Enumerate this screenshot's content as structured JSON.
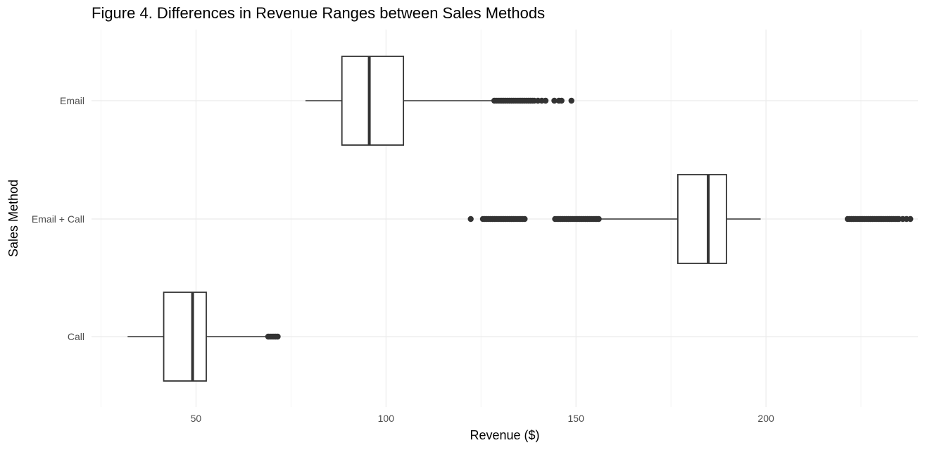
{
  "chart_data": {
    "type": "boxplot",
    "title": "Figure 4. Differences in Revenue Ranges between Sales Methods",
    "xlabel": "Revenue ($)",
    "ylabel": "Sales Method",
    "xlim": [
      22.5,
      240
    ],
    "x_ticks": [
      50,
      100,
      150,
      200
    ],
    "x_minor_ticks": [
      25,
      75,
      125,
      175,
      225
    ],
    "grid": true,
    "orientation": "horizontal",
    "categories": [
      "Email",
      "Email + Call",
      "Call"
    ],
    "series": [
      {
        "category": "Email",
        "whisker_low": 78.8,
        "q1": 88.4,
        "median": 95.6,
        "q3": 104.6,
        "whisker_high": 128.3,
        "outliers": [
          128.5,
          129,
          129.5,
          130,
          130.5,
          131,
          131.5,
          132,
          132.5,
          133,
          133.5,
          134,
          134.5,
          135,
          135.5,
          136,
          136.5,
          137,
          137.5,
          138,
          138.5,
          139,
          140,
          141,
          142,
          144.3,
          145.5,
          146.2,
          148.8
        ]
      },
      {
        "category": "Email + Call",
        "whisker_low": 156.5,
        "q1": 176.8,
        "median": 184.8,
        "q3": 189.6,
        "whisker_high": 198.6,
        "outliers": [
          122.3,
          125.5,
          126,
          126.5,
          127,
          127.5,
          128,
          128.5,
          129,
          129.5,
          130,
          130.5,
          131,
          131.5,
          132,
          132.5,
          133,
          133.5,
          134,
          134.5,
          135,
          135.5,
          136,
          136.5,
          144.5,
          145,
          145.5,
          146,
          146.5,
          147,
          147.5,
          148,
          148.5,
          149,
          149.5,
          150,
          150.5,
          151,
          151.5,
          152,
          152.5,
          153,
          153.5,
          154,
          154.5,
          155,
          155.5,
          156,
          221.5,
          222,
          222.5,
          223,
          223.5,
          224,
          224.5,
          225,
          225.5,
          226,
          226.5,
          227,
          227.5,
          228,
          228.5,
          229,
          229.5,
          230,
          230.5,
          231,
          231.5,
          232,
          232.5,
          233,
          233.5,
          234,
          234.5,
          235,
          236,
          237,
          238
        ]
      },
      {
        "category": "Call",
        "whisker_low": 32,
        "q1": 41.5,
        "median": 49.1,
        "q3": 52.7,
        "whisker_high": 68.8,
        "outliers": [
          69,
          69.5,
          70,
          70.5,
          71,
          71.5
        ]
      }
    ],
    "colors": {
      "box_fill": "#ffffff",
      "stroke": "#333333",
      "outlier": "#333333",
      "grid_major": "#ebebeb",
      "grid_minor": "#f4f4f4"
    }
  }
}
